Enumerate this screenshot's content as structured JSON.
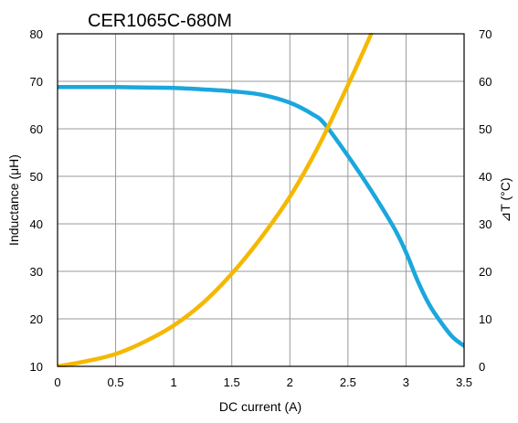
{
  "chart_data": {
    "type": "line",
    "title": "CER1065C-680M",
    "xlabel": "DC current (A)",
    "ylabel": "Inductance (μH)",
    "y2label": "⊿T (°C)",
    "xlim": [
      0,
      3.5
    ],
    "ylim": [
      10,
      80
    ],
    "y2lim": [
      0,
      70
    ],
    "xticks": [
      "0",
      "0.5",
      "1",
      "1.5",
      "2",
      "2.5",
      "3",
      "3.5"
    ],
    "yticks": [
      "10",
      "20",
      "30",
      "40",
      "50",
      "60",
      "70",
      "80"
    ],
    "y2ticks": [
      "0",
      "10",
      "20",
      "30",
      "40",
      "50",
      "60",
      "70"
    ],
    "grid": true,
    "series": [
      {
        "color": "#1aa7dd",
        "axis": "left",
        "x": [
          0,
          0.25,
          0.5,
          0.75,
          1.0,
          1.25,
          1.5,
          1.75,
          2.0,
          2.2,
          2.3,
          2.5,
          2.7,
          2.9,
          3.0,
          3.1,
          3.2,
          3.3,
          3.4,
          3.5
        ],
        "y": [
          68.8,
          68.8,
          68.8,
          68.7,
          68.6,
          68.3,
          67.9,
          67.2,
          65.5,
          63.0,
          61.0,
          54.3,
          47.0,
          39.0,
          34.0,
          28.0,
          23.0,
          19.3,
          16.2,
          14.3
        ]
      },
      {
        "color": "#f5b800",
        "axis": "right",
        "x": [
          0,
          0.25,
          0.5,
          0.75,
          1.0,
          1.25,
          1.5,
          1.75,
          2.0,
          2.25,
          2.5,
          2.6,
          2.7
        ],
        "y": [
          0,
          1.1,
          2.6,
          5.2,
          8.6,
          13.3,
          19.5,
          27.0,
          35.7,
          46.5,
          59.2,
          64.5,
          70.0
        ]
      }
    ]
  }
}
